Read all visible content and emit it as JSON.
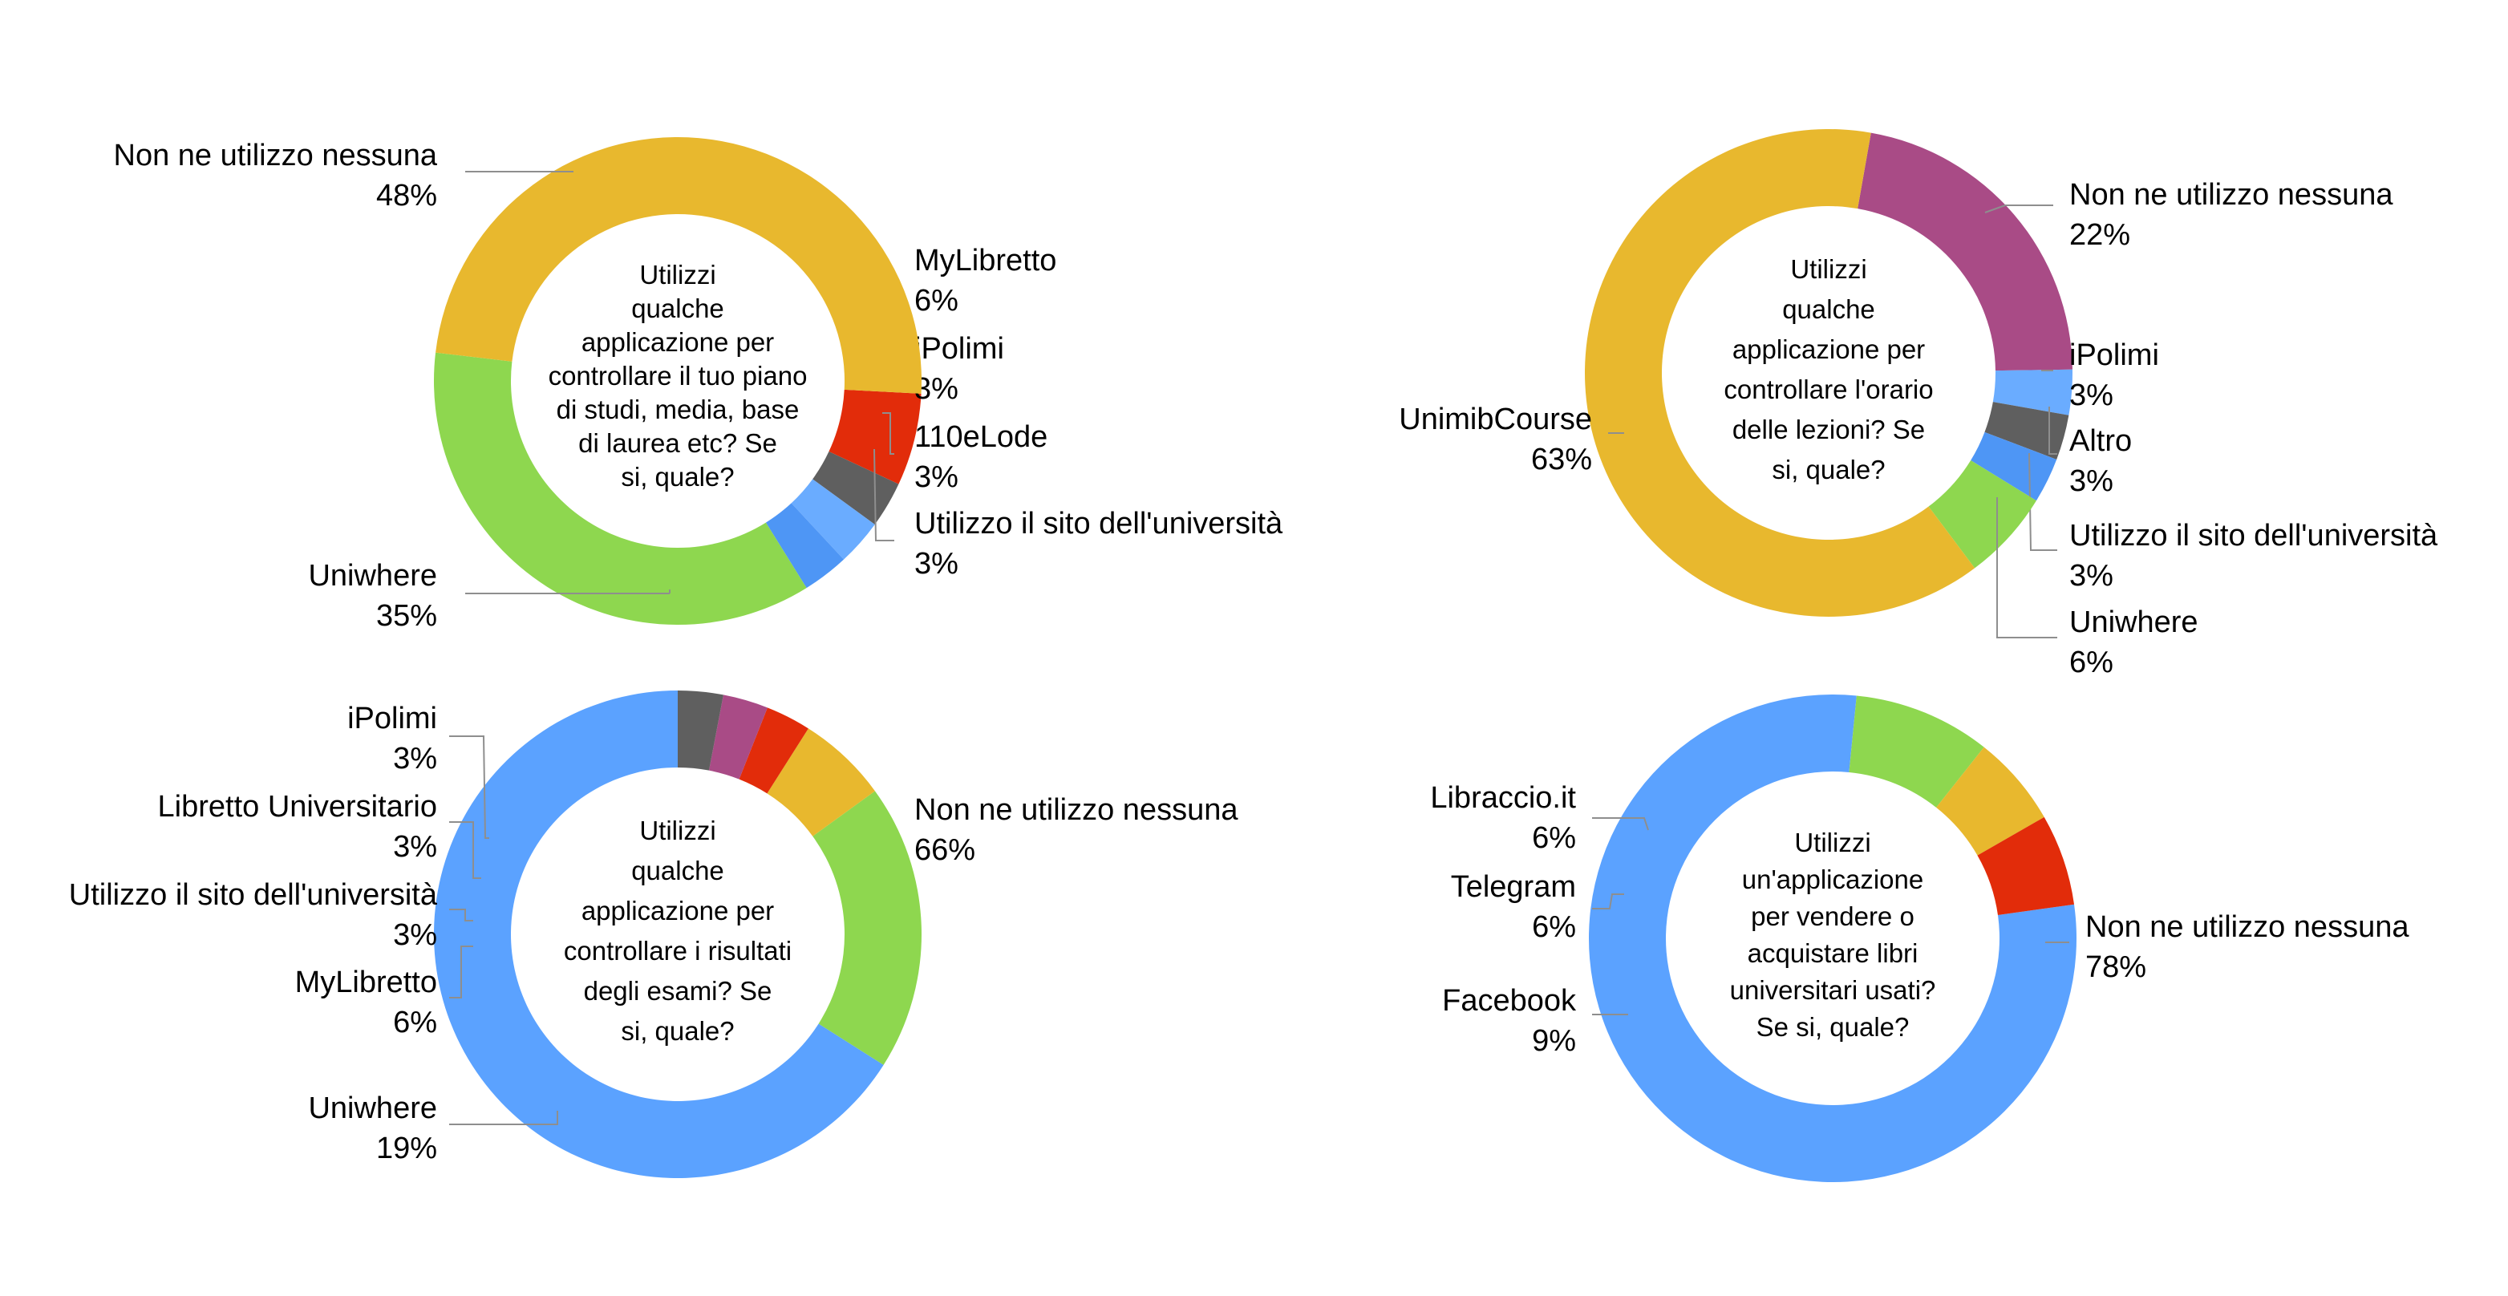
{
  "chart_data": [
    {
      "type": "pie",
      "donut": true,
      "center_text": [
        "Utilizzi",
        "qualche",
        "applicazione per",
        "controllare il tuo piano",
        "di studi, media, base",
        "di laurea etc? Se",
        "si, quale?"
      ],
      "slices": [
        {
          "name": "MyLibretto",
          "pct_label": "6%",
          "value": 6,
          "color": "#e22c0a"
        },
        {
          "name": "iPolimi",
          "pct_label": "3%",
          "value": 3,
          "color": "#5f5f5f"
        },
        {
          "name": "110eLode",
          "pct_label": "3%",
          "value": 3,
          "color": "#6aacff"
        },
        {
          "name": "Utilizzo il sito dell'università",
          "pct_label": "3%",
          "value": 3,
          "color": "#4e96f5"
        },
        {
          "name": "Uniwhere",
          "pct_label": "35%",
          "value": 35,
          "color": "#8ed74f"
        },
        {
          "name": "Non ne utilizzo nessuna",
          "pct_label": "48%",
          "value": 48,
          "color": "#e8b82e"
        }
      ]
    },
    {
      "type": "pie",
      "donut": true,
      "center_text": [
        "Utilizzi",
        "qualche",
        "applicazione per",
        "controllare l'orario",
        "delle lezioni? Se",
        "si, quale?"
      ],
      "slices": [
        {
          "name": "Non ne utilizzo nessuna",
          "pct_label": "22%",
          "value": 22,
          "color": "#a94b86"
        },
        {
          "name": "iPolimi",
          "pct_label": "3%",
          "value": 3,
          "color": "#6aacff"
        },
        {
          "name": "Altro",
          "pct_label": "3%",
          "value": 3,
          "color": "#5f5f5f"
        },
        {
          "name": "Utilizzo il sito dell'università",
          "pct_label": "3%",
          "value": 3,
          "color": "#4e96f5"
        },
        {
          "name": "Uniwhere",
          "pct_label": "6%",
          "value": 6,
          "color": "#8ed74f"
        },
        {
          "name": "UnimibCourse",
          "pct_label": "63%",
          "value": 63,
          "color": "#e8b82e"
        }
      ]
    },
    {
      "type": "pie",
      "donut": true,
      "center_text": [
        "Utilizzi",
        "qualche",
        "applicazione per",
        "controllare i risultati",
        "degli esami? Se",
        "si, quale?"
      ],
      "slices": [
        {
          "name": "Non ne utilizzo nessuna",
          "pct_label": "66%",
          "value": 66,
          "color": "#5ba2ff"
        },
        {
          "name": "Uniwhere",
          "pct_label": "19%",
          "value": 19,
          "color": "#8ed74f"
        },
        {
          "name": "MyLibretto",
          "pct_label": "6%",
          "value": 6,
          "color": "#e8b82e"
        },
        {
          "name": "Utilizzo il sito dell'università",
          "pct_label": "3%",
          "value": 3,
          "color": "#e22c0a"
        },
        {
          "name": "Libretto Universitario",
          "pct_label": "3%",
          "value": 3,
          "color": "#a94b86"
        },
        {
          "name": "iPolimi",
          "pct_label": "3%",
          "value": 3,
          "color": "#5f5f5f"
        }
      ]
    },
    {
      "type": "pie",
      "donut": true,
      "center_text": [
        "Utilizzi",
        "un'applicazione",
        "per vendere o",
        "acquistare libri",
        "universitari usati?",
        "Se si, quale?"
      ],
      "slices": [
        {
          "name": "Non ne utilizzo nessuna",
          "pct_label": "78%",
          "value": 78,
          "color": "#5ba2ff"
        },
        {
          "name": "Facebook",
          "pct_label": "9%",
          "value": 9,
          "color": "#8ed74f"
        },
        {
          "name": "Telegram",
          "pct_label": "6%",
          "value": 6,
          "color": "#e8b82e"
        },
        {
          "name": "Libraccio.it",
          "pct_label": "6%",
          "value": 6,
          "color": "#e22c0a"
        }
      ]
    }
  ]
}
